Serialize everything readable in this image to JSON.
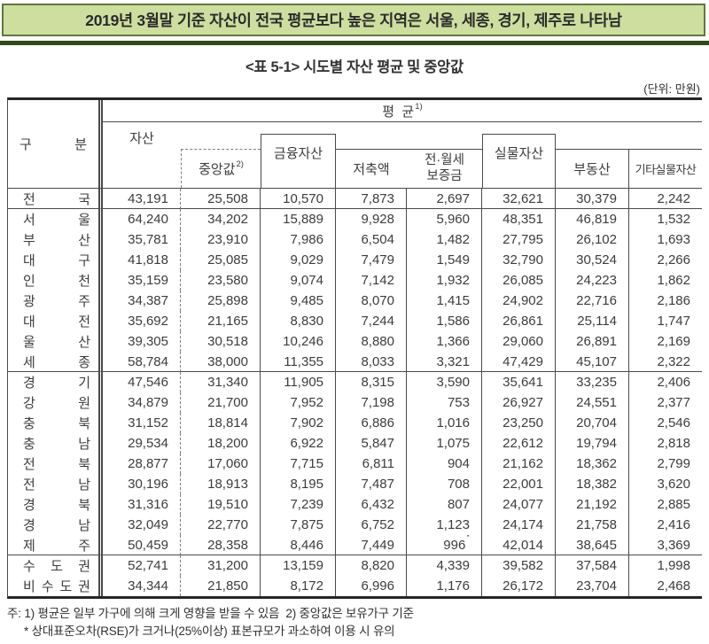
{
  "banner": {
    "text": "2019년 3월말 기준 자산이 전국 평균보다 높은 지역은 서울, 세종, 경기, 제주로 나타남",
    "bg_color": "#cdde9f",
    "border_color": "#62773d",
    "rule_color": "#33491a"
  },
  "table_title": "<표 5-1> 시도별 자산 평균 및 중앙값",
  "unit_note": "(단위: 만원)",
  "table": {
    "group_header": {
      "label": "평  균",
      "sup": "1)"
    },
    "columns": {
      "gubun": "구분",
      "asset": "자산",
      "median": {
        "label": "중앙값",
        "sup": "2)"
      },
      "financial": "금융자산",
      "savings": "저축액",
      "deposit_line1": "전·월세",
      "deposit_line2": "보증금",
      "real": "실물자산",
      "estate": "부동산",
      "other_real": "기타실물자산"
    },
    "rows": [
      {
        "region": "전국",
        "values": [
          "43,191",
          "25,508",
          "10,570",
          "7,873",
          "2,697",
          "32,621",
          "30,379",
          "2,242"
        ]
      },
      {
        "region": "서울",
        "values": [
          "64,240",
          "34,202",
          "15,889",
          "9,928",
          "5,960",
          "48,351",
          "46,819",
          "1,532"
        ]
      },
      {
        "region": "부산",
        "values": [
          "35,781",
          "23,910",
          "7,986",
          "6,504",
          "1,482",
          "27,795",
          "26,102",
          "1,693"
        ]
      },
      {
        "region": "대구",
        "values": [
          "41,818",
          "25,085",
          "9,029",
          "7,479",
          "1,549",
          "32,790",
          "30,524",
          "2,266"
        ]
      },
      {
        "region": "인천",
        "values": [
          "35,159",
          "23,580",
          "9,074",
          "7,142",
          "1,932",
          "26,085",
          "24,223",
          "1,862"
        ]
      },
      {
        "region": "광주",
        "values": [
          "34,387",
          "25,898",
          "9,485",
          "8,070",
          "1,415",
          "24,902",
          "22,716",
          "2,186"
        ]
      },
      {
        "region": "대전",
        "values": [
          "35,692",
          "21,165",
          "8,830",
          "7,244",
          "1,586",
          "26,861",
          "25,114",
          "1,747"
        ]
      },
      {
        "region": "울산",
        "values": [
          "39,305",
          "30,518",
          "10,246",
          "8,880",
          "1,366",
          "29,060",
          "26,891",
          "2,169"
        ]
      },
      {
        "region": "세종",
        "values": [
          "58,784",
          "38,000",
          "11,355",
          "8,033",
          "3,321",
          "47,429",
          "45,107",
          "2,322"
        ]
      },
      {
        "region": "경기",
        "values": [
          "47,546",
          "31,340",
          "11,905",
          "8,315",
          "3,590",
          "35,641",
          "33,235",
          "2,406"
        ]
      },
      {
        "region": "강원",
        "values": [
          "34,879",
          "21,700",
          "7,952",
          "7,198",
          "753",
          "26,927",
          "24,551",
          "2,377"
        ]
      },
      {
        "region": "충북",
        "values": [
          "31,152",
          "18,814",
          "7,902",
          "6,886",
          "1,016",
          "23,250",
          "20,704",
          "2,546"
        ]
      },
      {
        "region": "충남",
        "values": [
          "29,534",
          "18,200",
          "6,922",
          "5,847",
          "1,075",
          "22,612",
          "19,794",
          "2,818"
        ]
      },
      {
        "region": "전북",
        "values": [
          "28,877",
          "17,060",
          "7,715",
          "6,811",
          "904",
          "21,162",
          "18,362",
          "2,799"
        ]
      },
      {
        "region": "전남",
        "values": [
          "30,196",
          "18,913",
          "8,195",
          "7,487",
          "708",
          "22,001",
          "18,382",
          "3,620"
        ]
      },
      {
        "region": "경북",
        "values": [
          "31,316",
          "19,510",
          "7,239",
          "6,432",
          "807",
          "24,077",
          "21,192",
          "2,885"
        ]
      },
      {
        "region": "경남",
        "values": [
          "32,049",
          "22,770",
          "7,875",
          "6,752",
          "1,123",
          "24,174",
          "21,758",
          "2,416"
        ]
      },
      {
        "region": "제주",
        "values": [
          "50,459",
          "28,358",
          "8,446",
          "7,449",
          "996*",
          "42,014",
          "38,645",
          "3,369"
        ]
      },
      {
        "region": "수도권",
        "values": [
          "52,741",
          "31,200",
          "13,159",
          "8,820",
          "4,339",
          "39,582",
          "37,584",
          "1,998"
        ]
      },
      {
        "region": "비수도권",
        "values": [
          "34,344",
          "21,850",
          "8,172",
          "6,996",
          "1,176",
          "26,172",
          "23,704",
          "2,468"
        ]
      }
    ],
    "separator_after": [
      0,
      8,
      17
    ]
  },
  "footnotes": [
    "주: 1) 평균은 일부 가구에 의해 크게 영향을 받을 수 있음  2) 중앙값은 보유가구 기준",
    "* 상대표준오차(RSE)가 크거나(25%이상) 표본규모가 과소하여 이용 시 유의"
  ]
}
